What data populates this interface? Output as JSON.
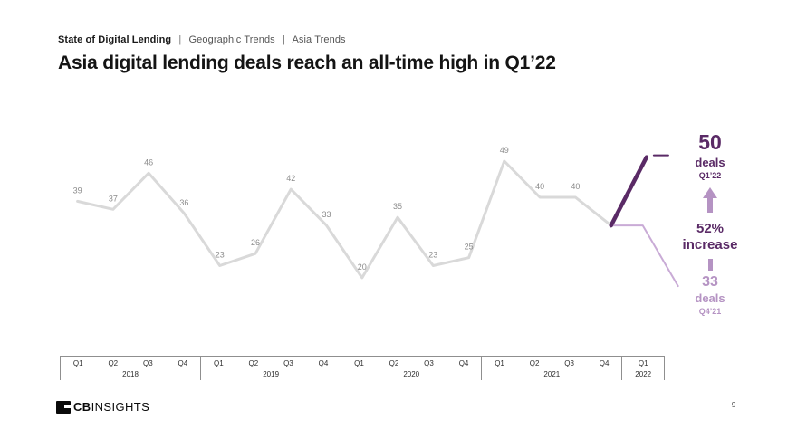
{
  "header": {
    "breadcrumb": {
      "items": [
        "State of Digital Lending",
        "Geographic Trends",
        "Asia Trends"
      ],
      "separator": "|"
    },
    "title": "Asia digital lending deals reach an all-time high in Q1’22"
  },
  "chart_data": {
    "type": "line",
    "x": [
      "Q1'18",
      "Q2'18",
      "Q3'18",
      "Q4'18",
      "Q1'19",
      "Q2'19",
      "Q3'19",
      "Q4'19",
      "Q1'20",
      "Q2'20",
      "Q3'20",
      "Q4'20",
      "Q1'21",
      "Q2'21",
      "Q3'21",
      "Q4'21",
      "Q1'22"
    ],
    "values": [
      39,
      37,
      46,
      36,
      23,
      26,
      42,
      33,
      20,
      35,
      23,
      25,
      49,
      40,
      40,
      33,
      50
    ],
    "unlabeled_point_indices": [
      15,
      16
    ],
    "axis_years": [
      {
        "label": "2018",
        "quarters": [
          "Q1",
          "Q2",
          "Q3",
          "Q4"
        ]
      },
      {
        "label": "2019",
        "quarters": [
          "Q1",
          "Q2",
          "Q3",
          "Q4"
        ]
      },
      {
        "label": "2020",
        "quarters": [
          "Q1",
          "Q2",
          "Q3",
          "Q4"
        ]
      },
      {
        "label": "2021",
        "quarters": [
          "Q1",
          "Q2",
          "Q3",
          "Q4"
        ]
      },
      {
        "label": "2022",
        "quarters": [
          "Q1"
        ]
      }
    ],
    "grid": false,
    "y_axis_shown": false,
    "legend": "none",
    "colors": {
      "line": "#d9d9d9",
      "point_label": "#8c8c8c",
      "highlight": "#5a2a66",
      "light_accent": "#b593c3",
      "light_line": "#c9abd6"
    }
  },
  "annotation": {
    "current": {
      "value": "50",
      "unit": "deals",
      "period": "Q1’22"
    },
    "change": {
      "percent": "52%",
      "label": "increase"
    },
    "previous": {
      "value": "33",
      "unit": "deals",
      "period": "Q4’21"
    }
  },
  "footer": {
    "logo_bold": "CB",
    "logo_rest": "INSIGHTS",
    "page_number": "9"
  }
}
